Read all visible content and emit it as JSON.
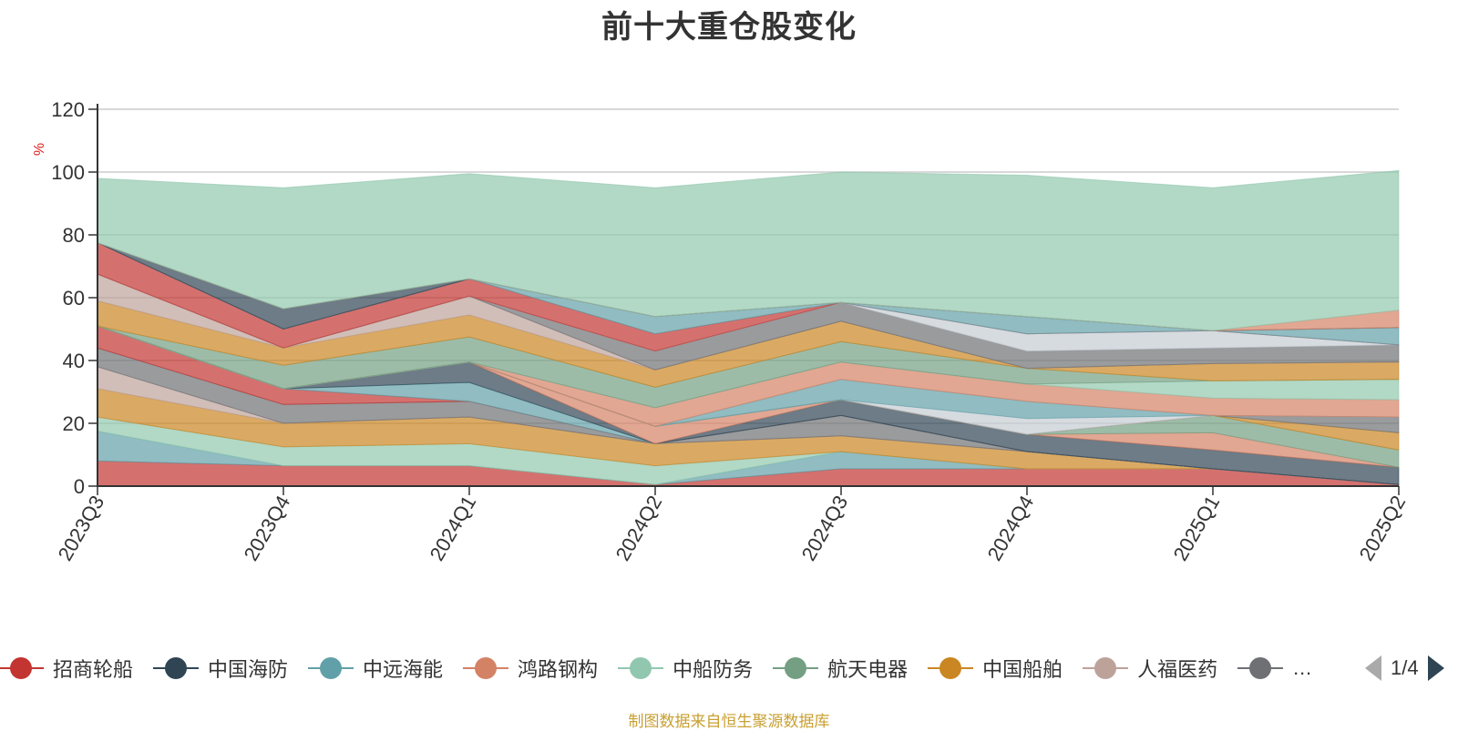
{
  "title": "前十大重仓股变化",
  "source_note": "制图数据来自恒生聚源数据库",
  "legend_page": "1/4",
  "legend_items": [
    {
      "name": "招商轮船",
      "color": "#c23531"
    },
    {
      "name": "中国海防",
      "color": "#2f4554"
    },
    {
      "name": "中远海能",
      "color": "#61a0a8"
    },
    {
      "name": "鸿路钢构",
      "color": "#d48265"
    },
    {
      "name": "中船防务",
      "color": "#91c7ae"
    },
    {
      "name": "航天电器",
      "color": "#749f83"
    },
    {
      "name": "中国船舶",
      "color": "#ca8622"
    },
    {
      "name": "人福医药",
      "color": "#bda29a"
    },
    {
      "name": "…",
      "color": "#6e7074"
    }
  ],
  "chart_data": {
    "type": "area",
    "stacked": true,
    "ylabel": "%",
    "ylim": [
      0,
      120
    ],
    "yticks": [
      0,
      20,
      40,
      60,
      80,
      100,
      120
    ],
    "categories": [
      "2023Q3",
      "2023Q4",
      "2024Q1",
      "2024Q2",
      "2024Q3",
      "2024Q4",
      "2025Q1",
      "2025Q2"
    ],
    "total_line": 100,
    "series": [
      {
        "color": "#c23531",
        "values": [
          8,
          6.5,
          6.5,
          0.5,
          5.5,
          5.5,
          5.5,
          0.5
        ]
      },
      {
        "color": "#61a0a8",
        "values": [
          9.5,
          0,
          0,
          0,
          5.5,
          0,
          0,
          0
        ]
      },
      {
        "color": "#91c7ae",
        "values": [
          4.5,
          6,
          7,
          6,
          0,
          0,
          0,
          0
        ]
      },
      {
        "color": "#ca8622",
        "values": [
          9,
          7.5,
          8.5,
          7,
          5,
          5.5,
          0,
          0
        ]
      },
      {
        "color": "#bda29a",
        "values": [
          7,
          0,
          0,
          0,
          0,
          0,
          0,
          0
        ]
      },
      {
        "color": "#6e7074",
        "values": [
          6,
          6,
          5,
          0,
          6.5,
          0,
          0,
          0
        ]
      },
      {
        "color": "#c23531",
        "values": [
          7,
          5,
          0,
          0,
          0,
          0,
          0,
          0
        ]
      },
      {
        "color": "#61a0a8",
        "values": [
          0,
          0,
          6,
          0,
          0,
          0,
          0,
          0
        ]
      },
      {
        "color": "#2f4554",
        "values": [
          0,
          0,
          6.5,
          0,
          5,
          5.5,
          6,
          5.5
        ]
      },
      {
        "color": "#d48265",
        "values": [
          0,
          0,
          0,
          5.5,
          0,
          0,
          5.5,
          0
        ]
      },
      {
        "color": "#749f83",
        "values": [
          0,
          0,
          0,
          0,
          0,
          0,
          5.5,
          5.5
        ]
      },
      {
        "color": "#ca8622",
        "values": [
          0,
          0,
          0,
          0,
          0,
          0,
          0,
          5.5
        ]
      },
      {
        "color": "#6e7074",
        "values": [
          0,
          0,
          0,
          0,
          0,
          0,
          0,
          5
        ]
      },
      {
        "color": "#c4ccd3",
        "values": [
          0,
          0,
          0,
          0,
          0,
          5,
          0,
          0
        ]
      },
      {
        "color": "#61a0a8",
        "values": [
          0,
          0,
          0,
          0,
          6.5,
          5.5,
          0,
          0
        ]
      },
      {
        "color": "#d48265",
        "values": [
          0,
          0,
          0,
          6,
          5.5,
          5.5,
          5.5,
          5.5
        ]
      },
      {
        "color": "#91c7ae",
        "values": [
          0,
          0,
          0,
          0,
          0,
          0,
          5.5,
          6.5
        ]
      },
      {
        "color": "#749f83",
        "values": [
          0,
          7.5,
          8,
          6.5,
          6.5,
          5,
          0,
          0
        ]
      },
      {
        "color": "#ca8622",
        "values": [
          8,
          5.5,
          7,
          5.5,
          6.5,
          0,
          5.5,
          5.5
        ]
      },
      {
        "color": "#bda29a",
        "values": [
          8.5,
          0,
          6,
          0,
          0,
          0,
          0,
          0
        ]
      },
      {
        "color": "#6e7074",
        "values": [
          0,
          0,
          0,
          6,
          6,
          5.5,
          5,
          5.5
        ]
      },
      {
        "color": "#c4ccd3",
        "values": [
          0,
          0,
          0,
          0,
          0,
          5.5,
          5.5,
          0
        ]
      },
      {
        "color": "#c23531",
        "values": [
          10,
          6,
          5.5,
          5.5,
          0,
          0,
          0,
          0
        ]
      },
      {
        "color": "#61a0a8",
        "values": [
          0,
          0,
          0,
          5.5,
          0,
          5.5,
          0,
          5.5
        ]
      },
      {
        "color": "#2f4554",
        "values": [
          0,
          6.5,
          0,
          0,
          0,
          0,
          0,
          0
        ]
      },
      {
        "color": "#d48265",
        "values": [
          0,
          0,
          0,
          0,
          0,
          0,
          0,
          5.5
        ]
      },
      {
        "color": "#91c7ae",
        "values": [
          20.5,
          38.5,
          33.5,
          41,
          41.5,
          45,
          45.5,
          44.5
        ]
      }
    ]
  }
}
